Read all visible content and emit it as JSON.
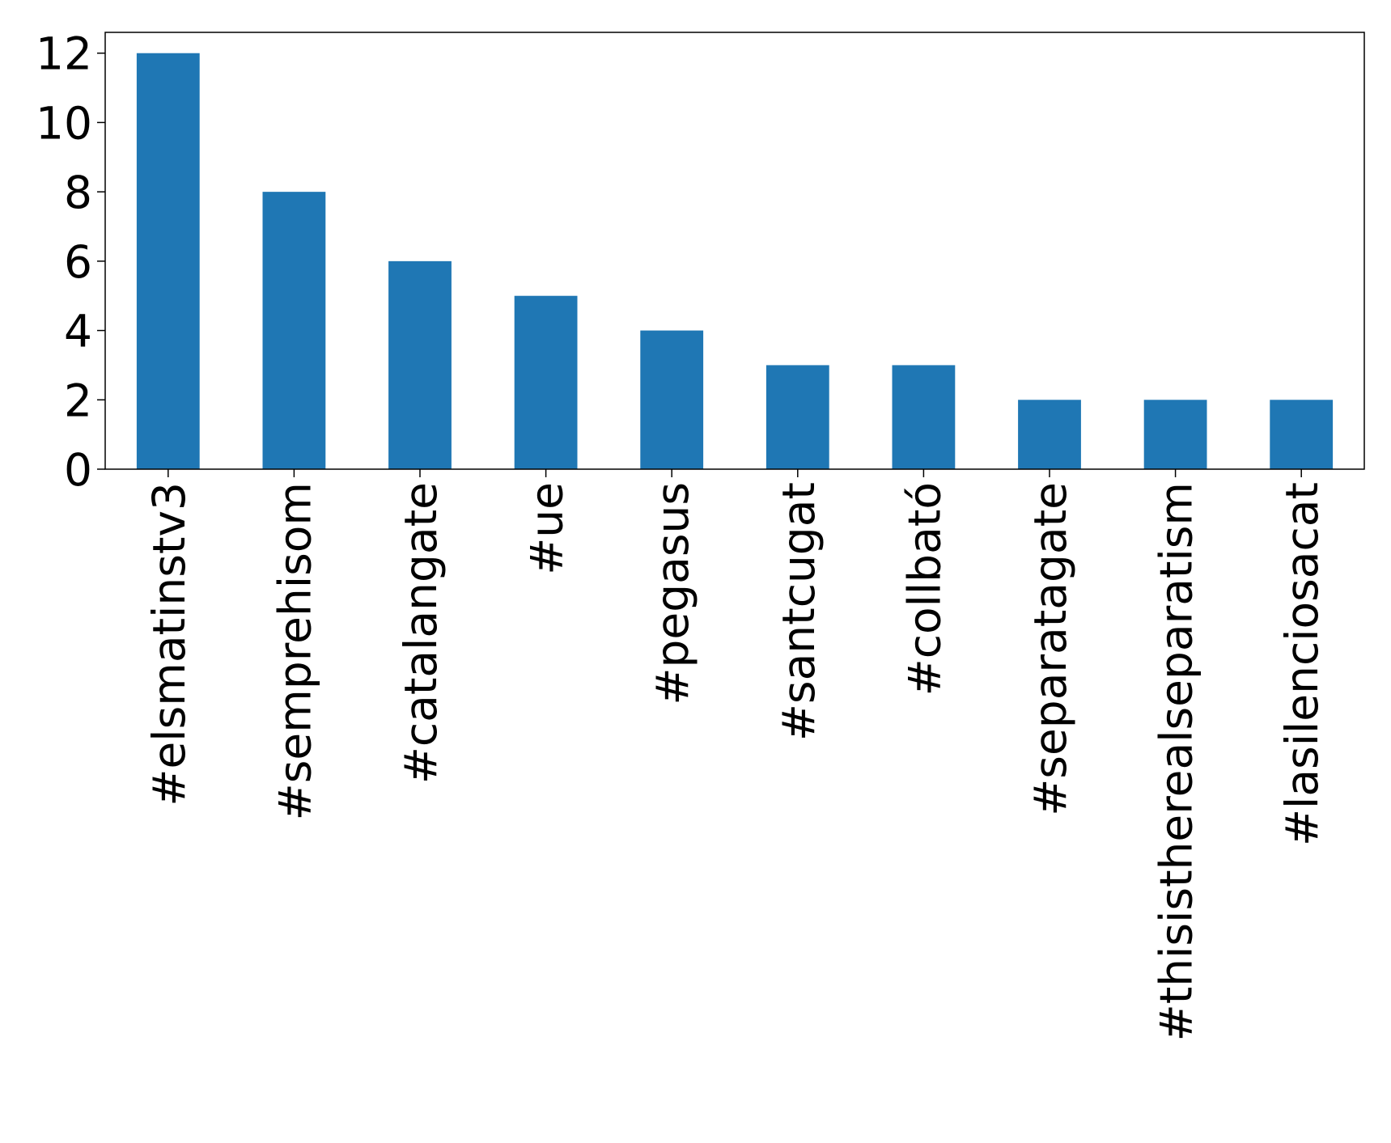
{
  "chart_data": {
    "type": "bar",
    "categories": [
      "#elsmatinstv3",
      "#semprehisom",
      "#catalangate",
      "#ue",
      "#pegasus",
      "#santcugat",
      "#collbató",
      "#separatagate",
      "#thisistherealseparatism",
      "#lasilenciosacat"
    ],
    "values": [
      12,
      8,
      6,
      5,
      4,
      3,
      3,
      2,
      2,
      2
    ],
    "color": "#1f77b4",
    "ylim": [
      0,
      12.6
    ],
    "yticks": [
      0,
      2,
      4,
      6,
      8,
      10,
      12
    ],
    "grid": false
  }
}
